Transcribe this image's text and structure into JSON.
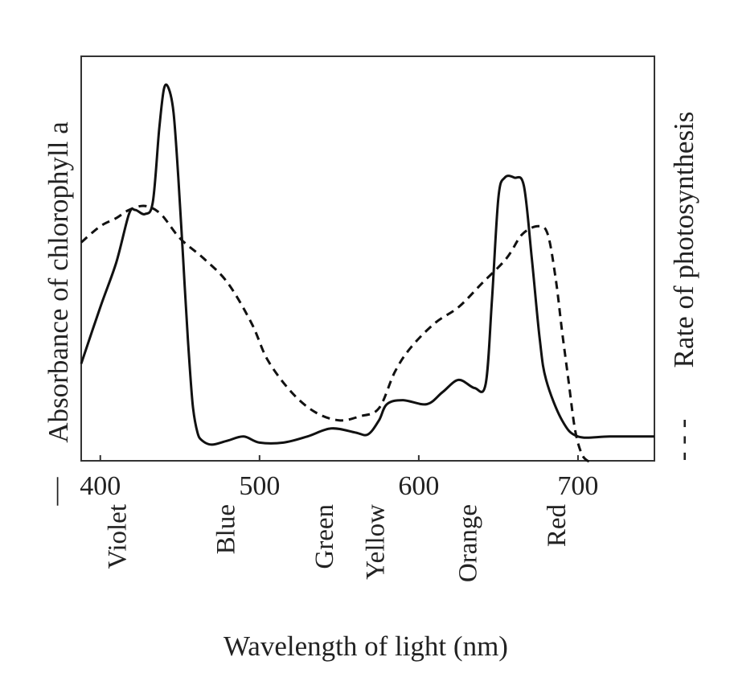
{
  "chart_data": {
    "type": "line",
    "title": "",
    "xlabel": "Wavelength of light (nm)",
    "ylabel_left": "Absorbance of chlorophyll a",
    "ylabel_right": "Rate of photosynthesis",
    "left_legend_glyph": "—",
    "right_legend_glyph": "- - -",
    "xlim": [
      388,
      748
    ],
    "ylim": [
      0,
      1
    ],
    "xticks": [
      400,
      500,
      600,
      700
    ],
    "grid": false,
    "color_bands": [
      "Violet",
      "Blue",
      "Green",
      "Yellow",
      "Orange",
      "Red"
    ],
    "color_band_x": [
      410,
      478,
      540,
      572,
      630,
      686
    ],
    "series": [
      {
        "name": "Absorbance of chlorophyll a",
        "style": "solid",
        "color": "#111111",
        "x": [
          388,
          400,
          410,
          418,
          422,
          428,
          433,
          437,
          440,
          443,
          446,
          449,
          452,
          455,
          458,
          461,
          464,
          470,
          480,
          490,
          500,
          515,
          530,
          545,
          560,
          568,
          575,
          580,
          590,
          605,
          615,
          625,
          635,
          642,
          646,
          650,
          654,
          660,
          666,
          671,
          676,
          680,
          690,
          700,
          720,
          748
        ],
        "y": [
          0.24,
          0.38,
          0.49,
          0.61,
          0.62,
          0.61,
          0.64,
          0.82,
          0.92,
          0.92,
          0.86,
          0.7,
          0.5,
          0.3,
          0.14,
          0.07,
          0.05,
          0.04,
          0.05,
          0.06,
          0.045,
          0.045,
          0.06,
          0.08,
          0.07,
          0.065,
          0.1,
          0.14,
          0.15,
          0.14,
          0.17,
          0.2,
          0.18,
          0.19,
          0.4,
          0.65,
          0.7,
          0.7,
          0.68,
          0.5,
          0.3,
          0.2,
          0.1,
          0.06,
          0.06,
          0.06
        ]
      },
      {
        "name": "Rate of photosynthesis",
        "style": "dashed",
        "color": "#111111",
        "x": [
          388,
          400,
          410,
          418,
          428,
          438,
          450,
          465,
          480,
          495,
          505,
          520,
          535,
          550,
          563,
          575,
          585,
          595,
          610,
          625,
          640,
          655,
          665,
          675,
          681,
          686,
          690,
          694,
          698,
          702,
          706,
          710
        ],
        "y": [
          0.54,
          0.58,
          0.6,
          0.62,
          0.63,
          0.61,
          0.55,
          0.5,
          0.44,
          0.34,
          0.25,
          0.17,
          0.12,
          0.1,
          0.11,
          0.13,
          0.22,
          0.28,
          0.34,
          0.38,
          0.44,
          0.5,
          0.56,
          0.58,
          0.56,
          0.45,
          0.32,
          0.2,
          0.08,
          0.02,
          0.0,
          0.0
        ]
      }
    ]
  }
}
